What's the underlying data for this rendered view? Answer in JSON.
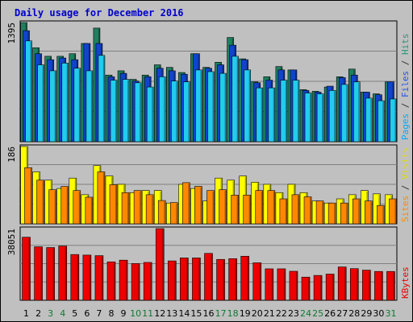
{
  "chart_data": {
    "type": "bar",
    "title": "Daily usage for December 2016",
    "categories": [
      "1",
      "2",
      "3",
      "4",
      "5",
      "6",
      "7",
      "8",
      "9",
      "10",
      "11",
      "12",
      "13",
      "14",
      "15",
      "16",
      "17",
      "18",
      "19",
      "20",
      "21",
      "22",
      "23",
      "24",
      "25",
      "26",
      "27",
      "28",
      "29",
      "30",
      "31"
    ],
    "weekend_days": [
      "3",
      "4",
      "10",
      "11",
      "17",
      "18",
      "24",
      "25",
      "31"
    ],
    "panels": [
      {
        "id": "hits-files-pages",
        "ymax_label": "1395",
        "ymax": 1395,
        "right_labels": [
          {
            "text": "Pages",
            "color": "#00aaff"
          },
          {
            "text": " / ",
            "color": "#333333"
          },
          {
            "text": "Files",
            "color": "#2255ee"
          },
          {
            "text": " / ",
            "color": "#333333"
          },
          {
            "text": "Hits",
            "color": "#229977"
          }
        ],
        "series": [
          {
            "name": "Hits",
            "color": "#1f8060",
            "values": [
              1395,
              1100,
              1000,
              1000,
              1030,
              1150,
              1330,
              780,
              830,
              730,
              780,
              900,
              870,
              810,
              1030,
              870,
              930,
              1220,
              970,
              700,
              760,
              880,
              840,
              610,
              590,
              640,
              760,
              850,
              580,
              560,
              700
            ]
          },
          {
            "name": "Files",
            "color": "#1144cc",
            "values": [
              1300,
              1030,
              960,
              980,
              960,
              1150,
              1150,
              760,
              800,
              710,
              760,
              860,
              830,
              790,
              1030,
              860,
              900,
              1130,
              960,
              690,
              720,
              840,
              840,
              600,
              580,
              650,
              750,
              780,
              580,
              550,
              700
            ]
          },
          {
            "name": "Pages",
            "color": "#22ccee",
            "values": [
              1180,
              900,
              830,
              920,
              860,
              830,
              1010,
              720,
              730,
              690,
              640,
              760,
              710,
              700,
              840,
              820,
              800,
              1000,
              840,
              630,
              630,
              720,
              720,
              570,
              560,
              600,
              670,
              700,
              510,
              480,
              500
            ]
          }
        ]
      },
      {
        "id": "visits-sites",
        "ymax_label": "186",
        "ymax": 186,
        "right_labels": [
          {
            "text": "Sites",
            "color": "#ff8800"
          },
          {
            "text": " / ",
            "color": "#333333"
          },
          {
            "text": "Visits",
            "color": "#dddd00"
          }
        ],
        "series": [
          {
            "name": "Visits",
            "color": "#ffff00",
            "values": [
              186,
              125,
              105,
              85,
              110,
              70,
              140,
              115,
              95,
              75,
              80,
              80,
              50,
              95,
              85,
              55,
              110,
              105,
              115,
              100,
              95,
              75,
              95,
              75,
              55,
              50,
              60,
              70,
              80,
              72,
              70
            ]
          },
          {
            "name": "Sites",
            "color": "#ff8800",
            "values": [
              135,
              105,
              82,
              90,
              80,
              64,
              125,
              94,
              75,
              80,
              70,
              56,
              51,
              99,
              90,
              80,
              82,
              69,
              69,
              80,
              80,
              60,
              70,
              65,
              55,
              50,
              50,
              60,
              55,
              44,
              60
            ]
          }
        ]
      },
      {
        "id": "kbytes",
        "ymax_label": "38051",
        "ymax": 38051,
        "right_labels": [
          {
            "text": "KBytes",
            "color": "#ee0000"
          }
        ],
        "series": [
          {
            "name": "KBytes",
            "color": "#ee0000",
            "values": [
              33500,
              28400,
              28000,
              28800,
              24300,
              24000,
              23700,
              20400,
              21300,
              19500,
              20100,
              38051,
              20900,
              22500,
              22500,
              24900,
              21700,
              22100,
              23400,
              19900,
              16700,
              16700,
              15400,
              12300,
              13200,
              13900,
              17700,
              16800,
              16000,
              15300,
              15300
            ]
          }
        ]
      }
    ]
  }
}
